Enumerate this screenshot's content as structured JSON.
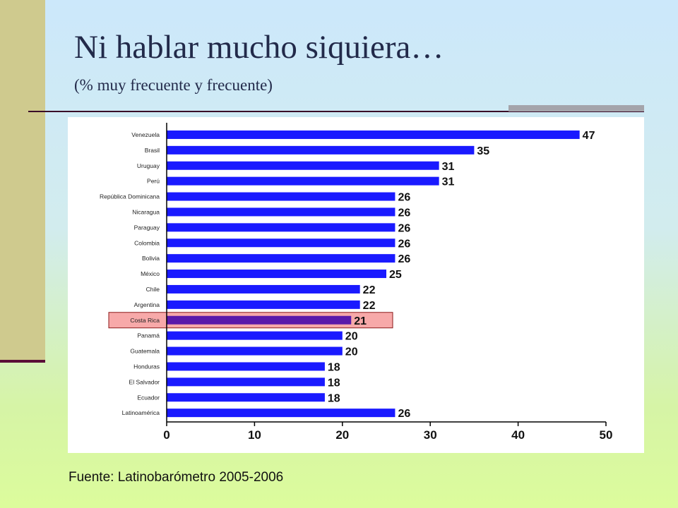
{
  "slide": {
    "title": "Ni hablar mucho siquiera…",
    "subtitle": "(% muy frecuente y frecuente)",
    "source": "Fuente: Latinobarómetro 2005-2006"
  },
  "colors": {
    "bar": "#1a1aff",
    "highlight_bar": "#5a1aaa",
    "highlight_box": "#f7a9a9",
    "highlight_border": "#8b1a1a"
  },
  "chart_data": {
    "type": "bar",
    "orientation": "horizontal",
    "categories": [
      "Venezuela",
      "Brasil",
      "Uruguay",
      "Perú",
      "República Dominicana",
      "Nicaragua",
      "Paraguay",
      "Colombia",
      "Bolivia",
      "México",
      "Chile",
      "Argentina",
      "Costa Rica",
      "Panamá",
      "Guatemala",
      "Honduras",
      "El Salvador",
      "Ecuador",
      "Latinoamérica"
    ],
    "values": [
      47,
      35,
      31,
      31,
      26,
      26,
      26,
      26,
      26,
      25,
      22,
      22,
      21,
      20,
      20,
      18,
      18,
      18,
      26
    ],
    "highlight": "Costa Rica",
    "xlim": [
      0,
      50
    ],
    "xticks": [
      0,
      10,
      20,
      30,
      40,
      50
    ],
    "grid": false,
    "data_labels": true
  }
}
